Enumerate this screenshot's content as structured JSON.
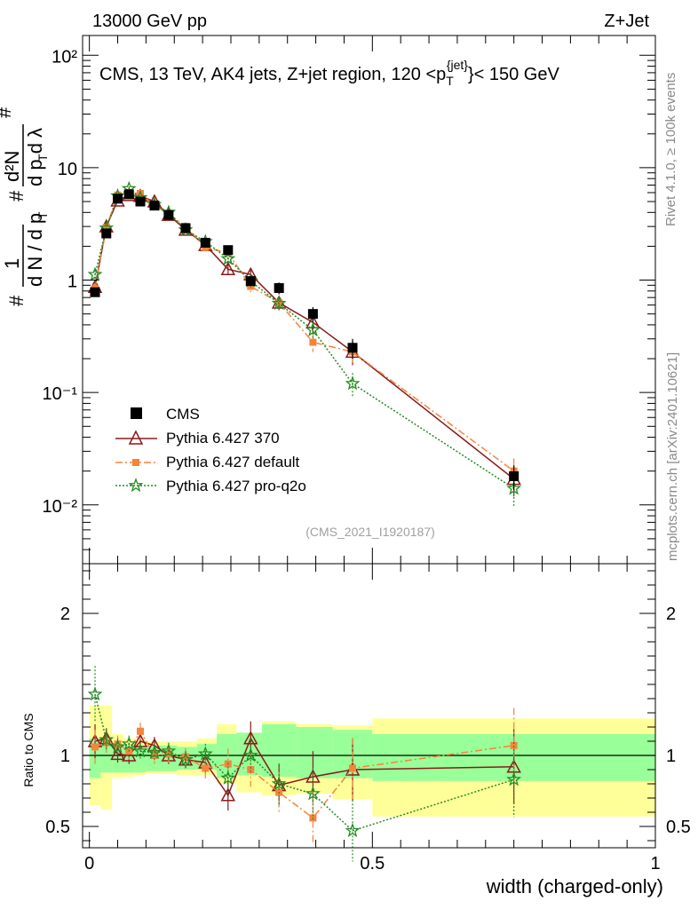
{
  "header": {
    "left": "13000 GeV pp",
    "right": "Z+Jet"
  },
  "side_labels": {
    "rivet": "Rivet 4.1.0, ≥ 100k events",
    "mcplots": "mcplots.cern.ch [arXiv:2401.10621]"
  },
  "chart_data": {
    "type": "scatter",
    "title": "CMS, 13 TeV, AK4 jets, Z+jet region, 120 <p_T^{jet}< 150 GeV",
    "title_parts": {
      "main": "CMS, 13 TeV, AK4 jets, Z+jet region, 120 <p",
      "sub": "T",
      "sup": "{jet}",
      "end": "}< 150 GeV"
    },
    "analysis_tag": "(CMS_2021_I1920187)",
    "xlabel": "width (charged-only)",
    "xlim": [
      -0.012,
      1.0
    ],
    "x_ticks": [
      "0",
      "0.5",
      "1"
    ],
    "main_panel": {
      "yscale": "log",
      "ylim": [
        0.003,
        150
      ],
      "y_ticks": [
        "10⁻²",
        "10⁻¹",
        "1",
        "10",
        "10²"
      ],
      "ylabel_parts": {
        "frac1": "1",
        "denom": "d N / d p",
        "sub": "T",
        "frac2_num": "d²N",
        "frac2_den": "d p  d λ",
        "hash": "#"
      },
      "x": [
        0.01,
        0.03,
        0.05,
        0.07,
        0.09,
        0.115,
        0.14,
        0.17,
        0.205,
        0.245,
        0.285,
        0.335,
        0.395,
        0.465,
        0.75
      ],
      "series": [
        {
          "name": "CMS",
          "style": "data",
          "color": "#000000",
          "values": [
            0.78,
            2.6,
            5.3,
            5.8,
            5.0,
            4.6,
            3.8,
            2.9,
            2.15,
            1.85,
            0.98,
            0.85,
            0.5,
            0.25,
            0.018
          ]
        },
        {
          "name": "Pythia 6.427 370",
          "style": "triangle-solid",
          "color": "#8b1a1a",
          "values": [
            0.87,
            3.0,
            5.1,
            5.7,
            5.6,
            5.0,
            3.8,
            2.8,
            2.05,
            1.25,
            1.12,
            0.63,
            0.42,
            0.23,
            0.017
          ]
        },
        {
          "name": "Pythia 6.427 default",
          "style": "square-dashdot",
          "color": "#f5843c",
          "values": [
            0.84,
            2.95,
            5.7,
            6.0,
            5.9,
            4.6,
            3.9,
            3.0,
            1.95,
            1.75,
            0.88,
            0.63,
            0.28,
            0.23,
            0.02
          ]
        },
        {
          "name": "Pythia 6.427 pro-q2o",
          "style": "star-dotted",
          "color": "#228b22",
          "values": [
            1.12,
            2.9,
            5.6,
            6.5,
            5.4,
            4.7,
            4.0,
            2.8,
            2.2,
            1.55,
            0.98,
            0.62,
            0.36,
            0.12,
            0.014
          ]
        }
      ]
    },
    "ratio_panel": {
      "ylabel": "Ratio to CMS",
      "ylim": [
        0.35,
        2.35
      ],
      "y_ticks": [
        "0.5",
        "1",
        "2"
      ],
      "bins": [
        0,
        0.02,
        0.04,
        0.06,
        0.08,
        0.1,
        0.13,
        0.155,
        0.19,
        0.225,
        0.26,
        0.305,
        0.365,
        0.43,
        0.5,
        1.0
      ],
      "band_green": [
        [
          0.84,
          1.12
        ],
        [
          0.88,
          1.1
        ],
        [
          0.88,
          1.08
        ],
        [
          0.88,
          1.07
        ],
        [
          0.88,
          1.07
        ],
        [
          0.89,
          1.07
        ],
        [
          0.89,
          1.07
        ],
        [
          0.9,
          1.06
        ],
        [
          0.9,
          1.08
        ],
        [
          0.84,
          1.15
        ],
        [
          0.86,
          1.16
        ],
        [
          0.85,
          1.22
        ],
        [
          0.84,
          1.2
        ],
        [
          0.84,
          1.18
        ],
        [
          0.82,
          1.15
        ]
      ],
      "band_yellow": [
        [
          0.65,
          1.35
        ],
        [
          0.62,
          1.35
        ],
        [
          0.84,
          1.15
        ],
        [
          0.85,
          1.12
        ],
        [
          0.86,
          1.11
        ],
        [
          0.87,
          1.1
        ],
        [
          0.87,
          1.1
        ],
        [
          0.86,
          1.1
        ],
        [
          0.86,
          1.12
        ],
        [
          0.8,
          1.22
        ],
        [
          0.74,
          1.15
        ],
        [
          0.72,
          1.24
        ],
        [
          0.73,
          1.22
        ],
        [
          0.69,
          1.21
        ],
        [
          0.57,
          1.26
        ]
      ],
      "series": [
        {
          "name": "Pythia 6.427 370",
          "values": [
            1.1,
            1.12,
            1.01,
            1.0,
            1.1,
            1.07,
            1.0,
            0.97,
            0.95,
            0.72,
            1.12,
            0.79,
            0.85,
            0.9,
            0.92
          ]
        },
        {
          "name": "Pythia 6.427 default",
          "values": [
            1.06,
            1.09,
            1.08,
            1.03,
            1.17,
            1.0,
            1.01,
            0.99,
            0.91,
            0.94,
            0.9,
            0.74,
            0.56,
            0.91,
            1.07
          ]
        },
        {
          "name": "Pythia 6.427 pro-q2o",
          "values": [
            1.43,
            1.11,
            1.06,
            1.08,
            1.03,
            1.02,
            1.03,
            0.97,
            1.01,
            0.84,
            1.0,
            0.8,
            0.73,
            0.47,
            0.83
          ]
        }
      ]
    }
  }
}
